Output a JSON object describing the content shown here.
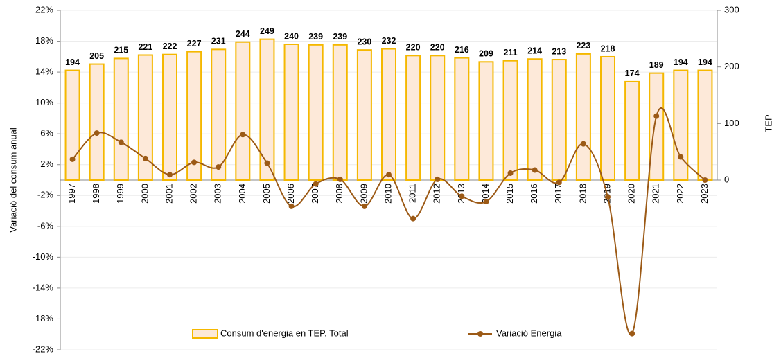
{
  "chart_data": {
    "type": "bar_line",
    "y_label": "Variació del consum anual",
    "y2_label": "TEP",
    "categories": [
      "1997",
      "1998",
      "1999",
      "2000",
      "2001",
      "2002",
      "2003",
      "2004",
      "2005",
      "2006",
      "2007",
      "2008",
      "2009",
      "2010",
      "2011",
      "2012",
      "2013",
      "2014",
      "2015",
      "2016",
      "2017",
      "2018",
      "2019",
      "2020",
      "2021",
      "2022",
      "2023"
    ],
    "series": [
      {
        "name": "Consum d'energia en TEP. Total",
        "type": "bar",
        "axis": "y2",
        "color": "#fde9d9",
        "edge_color": "#f5b800",
        "values": [
          194,
          205,
          215,
          221,
          222,
          227,
          231,
          244,
          249,
          240,
          239,
          239,
          230,
          232,
          220,
          220,
          216,
          209,
          211,
          214,
          213,
          223,
          218,
          174,
          189,
          194,
          194
        ]
      },
      {
        "name": "Variació Energia",
        "type": "line",
        "axis": "y",
        "color": "#9c5a16",
        "values": [
          2.7,
          6.1,
          4.9,
          2.8,
          0.7,
          2.3,
          1.7,
          5.9,
          2.2,
          -3.4,
          -0.5,
          0.1,
          -3.4,
          0.7,
          -5.0,
          0.1,
          -2.1,
          -2.8,
          0.9,
          1.3,
          -0.3,
          4.7,
          -2.2,
          -19.9,
          8.3,
          3.0,
          0.0
        ]
      }
    ],
    "ylim": [
      -22,
      22
    ],
    "yticks": [
      {
        "value": 22,
        "label": "22%"
      },
      {
        "value": 18,
        "label": "18%"
      },
      {
        "value": 14,
        "label": "14%"
      },
      {
        "value": 10,
        "label": "10%"
      },
      {
        "value": 6,
        "label": "6%"
      },
      {
        "value": 2,
        "label": "2%"
      },
      {
        "value": -2,
        "label": "-2%"
      },
      {
        "value": -6,
        "label": "-6%"
      },
      {
        "value": -10,
        "label": "-10%"
      },
      {
        "value": -14,
        "label": "-14%"
      },
      {
        "value": -18,
        "label": "-18%"
      },
      {
        "value": -22,
        "label": "-22%"
      }
    ],
    "y2lim": [
      0,
      300
    ],
    "y2ticks": [
      0,
      100,
      200,
      300
    ],
    "grid": true,
    "legend": "bottom"
  }
}
